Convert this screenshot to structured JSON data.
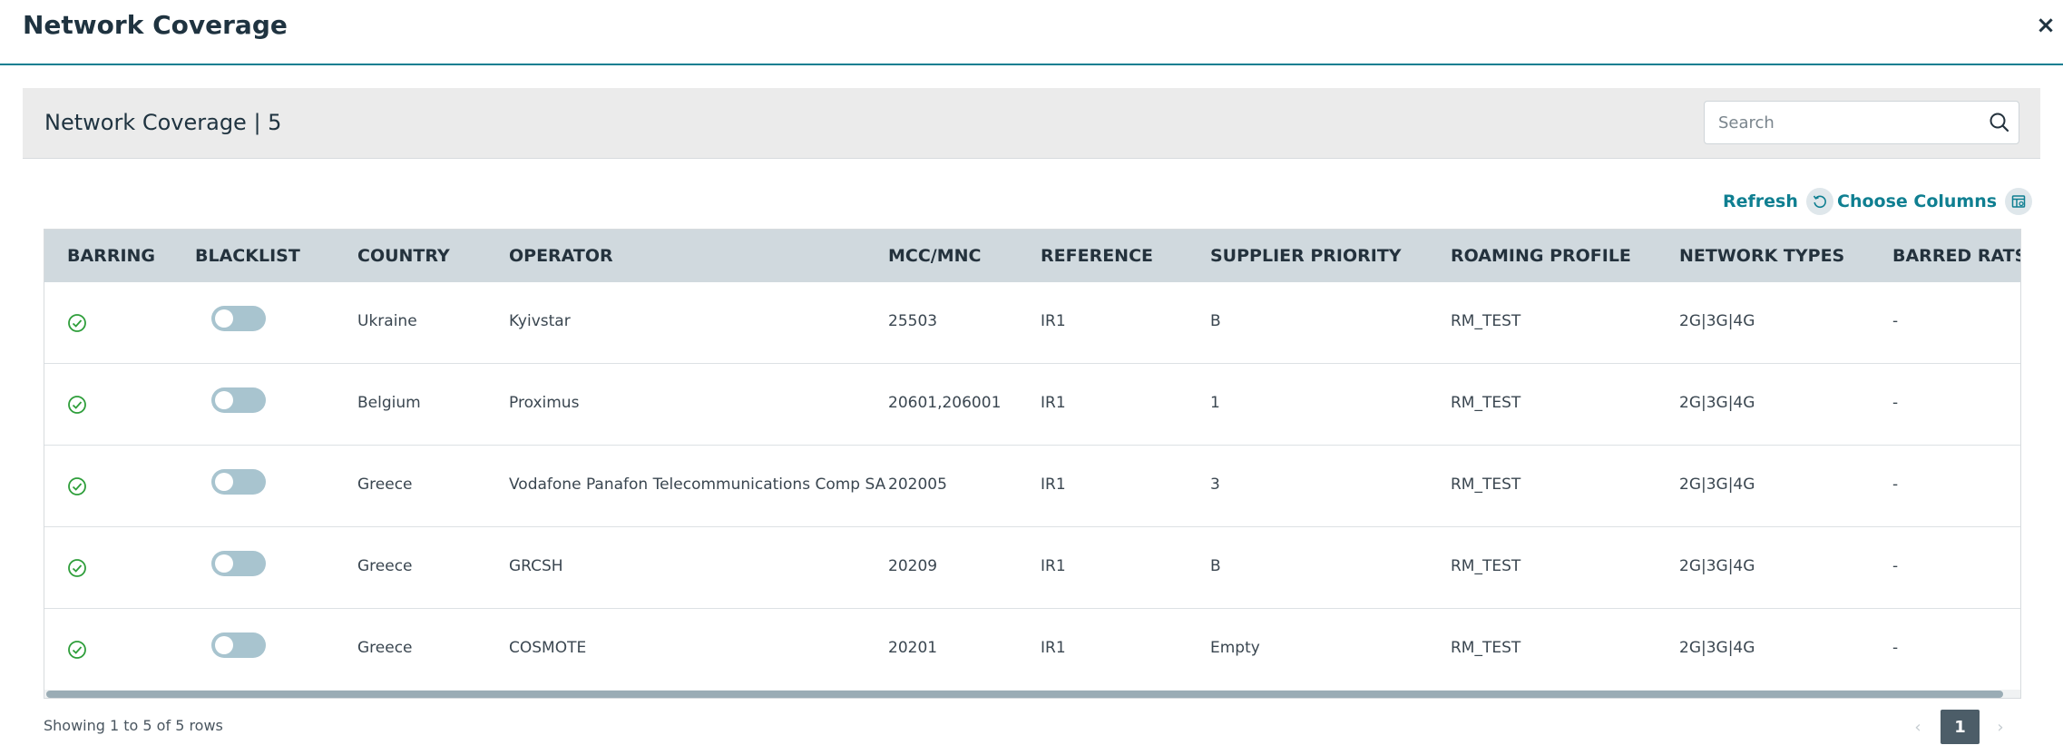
{
  "modal": {
    "title": "Network Coverage",
    "close_label": "×"
  },
  "panel": {
    "title": "Network Coverage | 5",
    "search_placeholder": "Search"
  },
  "toolbar": {
    "refresh_label": "Refresh",
    "choose_columns_label": "Choose Columns"
  },
  "table": {
    "headers": [
      "BARRING",
      "BLACKLIST",
      "COUNTRY",
      "OPERATOR",
      "MCC/MNC",
      "REFERENCE",
      "SUPPLIER PRIORITY",
      "ROAMING PROFILE",
      "NETWORK TYPES",
      "BARRED RATS"
    ],
    "rows": [
      {
        "barring": "check-circle-icon",
        "blacklist": false,
        "country": "Ukraine",
        "operator": "Kyivstar",
        "mcc_mnc": "25503",
        "reference": "IR1",
        "supplier_priority": "B",
        "roaming_profile": "RM_TEST",
        "network_types": "2G|3G|4G",
        "barred_rats": "-"
      },
      {
        "barring": "check-circle-icon",
        "blacklist": false,
        "country": "Belgium",
        "operator": "Proximus",
        "mcc_mnc": "20601,206001",
        "reference": "IR1",
        "supplier_priority": "1",
        "roaming_profile": "RM_TEST",
        "network_types": "2G|3G|4G",
        "barred_rats": "-"
      },
      {
        "barring": "check-circle-icon",
        "blacklist": false,
        "country": "Greece",
        "operator": "Vodafone Panafon Telecommunications Comp SA",
        "mcc_mnc": "202005",
        "reference": "IR1",
        "supplier_priority": "3",
        "roaming_profile": "RM_TEST",
        "network_types": "2G|3G|4G",
        "barred_rats": "-"
      },
      {
        "barring": "check-circle-icon",
        "blacklist": false,
        "country": "Greece",
        "operator": "GRCSH",
        "mcc_mnc": "20209",
        "reference": "IR1",
        "supplier_priority": "B",
        "roaming_profile": "RM_TEST",
        "network_types": "2G|3G|4G",
        "barred_rats": "-"
      },
      {
        "barring": "check-circle-icon",
        "blacklist": false,
        "country": "Greece",
        "operator": "COSMOTE",
        "mcc_mnc": "20201",
        "reference": "IR1",
        "supplier_priority": "Empty",
        "roaming_profile": "RM_TEST",
        "network_types": "2G|3G|4G",
        "barred_rats": "-"
      }
    ]
  },
  "footer": {
    "showing_text": "Showing 1 to 5 of 5 rows",
    "current_page": "1",
    "prev_label": "‹",
    "next_label": "›"
  },
  "colors": {
    "accent": "#0f7f91",
    "success": "#2e9e3a",
    "header_bg": "#d0d9de",
    "pager_active": "#4c5d68"
  },
  "icons": {
    "close": "close-icon",
    "search": "search-icon",
    "refresh": "refresh-icon",
    "choose_columns": "columns-icon",
    "barring": "check-circle-icon"
  }
}
